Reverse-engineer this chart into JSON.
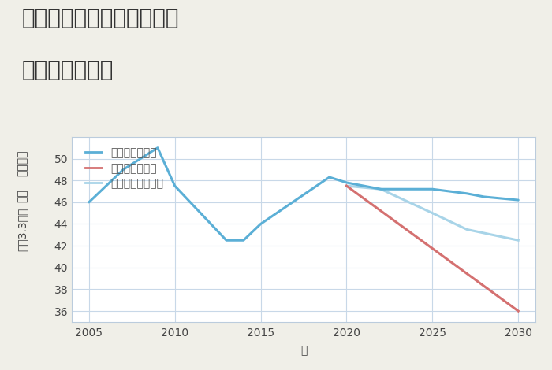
{
  "title_line1": "大阪府東大阪市南四条町の",
  "title_line2": "土地の価格推移",
  "xlabel": "年",
  "ylabel_top": "（万円）",
  "ylabel_mid": "単価",
  "ylabel_bot": "坪（3.3㎡）",
  "background_color": "#f0efe8",
  "plot_background_color": "#ffffff",
  "grid_color": "#c8d8e8",
  "good_scenario": {
    "label": "グッドシナリオ",
    "color": "#5bafd6",
    "x": [
      2005,
      2007,
      2009,
      2010,
      2013,
      2014,
      2015,
      2019,
      2020,
      2021,
      2022,
      2025,
      2026,
      2027,
      2028,
      2030
    ],
    "y": [
      46.0,
      49.0,
      51.0,
      47.5,
      42.5,
      42.5,
      44.0,
      48.3,
      47.8,
      47.5,
      47.2,
      47.2,
      47.0,
      46.8,
      46.5,
      46.2
    ]
  },
  "bad_scenario": {
    "label": "バッドシナリオ",
    "color": "#d47070",
    "x": [
      2020,
      2030
    ],
    "y": [
      47.5,
      36.0
    ]
  },
  "normal_scenario": {
    "label": "ノーマルシナリオ",
    "color": "#a8d4e8",
    "x": [
      2020,
      2022,
      2025,
      2027,
      2030
    ],
    "y": [
      47.5,
      47.2,
      45.0,
      43.5,
      42.5
    ]
  },
  "xlim": [
    2004,
    2031
  ],
  "ylim": [
    35,
    52
  ],
  "xticks": [
    2005,
    2010,
    2015,
    2020,
    2025,
    2030
  ],
  "yticks": [
    36,
    38,
    40,
    42,
    44,
    46,
    48,
    50
  ],
  "line_width": 2.2,
  "title_fontsize": 20,
  "axis_label_fontsize": 10,
  "tick_fontsize": 10,
  "legend_fontsize": 10
}
